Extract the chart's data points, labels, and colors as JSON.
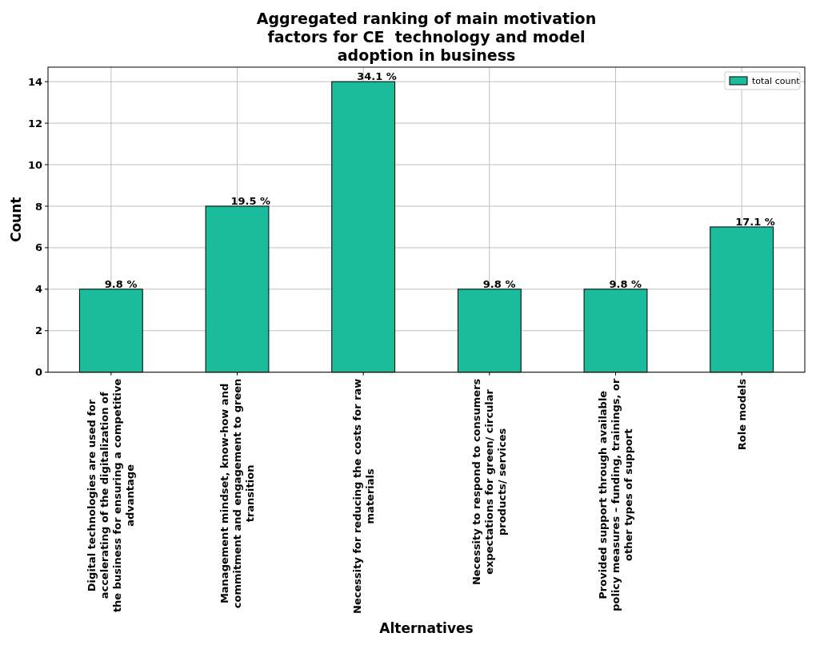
{
  "chart_data": {
    "type": "bar",
    "title": "Aggregated ranking of main motivation\nfactors for CE  technology and model\nadoption in business",
    "xlabel": "Alternatives",
    "ylabel": "Count",
    "categories": [
      "Digital technologies are used for\naccelerating of the digitalization of\nthe business for ensuring a competitive\nadvantage",
      "Management mindset, know-how and\ncommitment and engagement to green\ntransition",
      "Necessity for reducing the costs for raw\nmaterials",
      "Necessity to respond to consumers\nexpectations for green/ circular\nproducts/ services",
      "Provided support through available\npolicy measures – funding, trainings, or\nother types of support",
      "Role models"
    ],
    "series": [
      {
        "name": "total count",
        "color": "#1abc9c",
        "values": [
          4,
          8,
          14,
          4,
          4,
          7
        ]
      }
    ],
    "annotations": [
      {
        "text": "9.8 %",
        "x": "Digital technologies are used for\naccelerating of the digitalization of\nthe business for ensuring a competitive\nadvantage",
        "y": 4
      },
      {
        "text": "19.5 %",
        "x": "Management mindset, know-how and\ncommitment and engagement to green\ntransition",
        "y": 8
      },
      {
        "text": "34.1 %",
        "x": "Necessity for reducing the costs for raw\nmaterials",
        "y": 14
      },
      {
        "text": "9.8 %",
        "x": "Necessity to respond to consumers\nexpectations for green/ circular\nproducts/ services",
        "y": 4
      },
      {
        "text": "9.8 %",
        "x": "Provided support through available\npolicy measures – funding, trainings, or\nother types of support",
        "y": 4
      },
      {
        "text": "17.1 %",
        "x": "Role models",
        "y": 7
      }
    ],
    "ylim": [
      0,
      14.7
    ],
    "yticks": [
      0,
      2,
      4,
      6,
      8,
      10,
      12,
      14
    ],
    "grid": true,
    "legend": "top right"
  }
}
